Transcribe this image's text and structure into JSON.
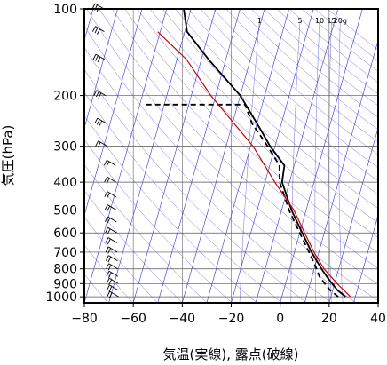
{
  "chart_data": {
    "type": "line",
    "title": "",
    "xlabel": "気温(実線), 露点(破線)",
    "ylabel": "気圧(hPa)",
    "xlim": [
      -80,
      40
    ],
    "ylim_hpa": [
      1050,
      100
    ],
    "y_scale": "log",
    "x_ticks": [
      "−80",
      "−60",
      "−40",
      "−20",
      "0",
      "20",
      "40"
    ],
    "x_tick_values": [
      -80,
      -60,
      -40,
      -20,
      0,
      20,
      40
    ],
    "y_ticks": [
      "100",
      "200",
      "300",
      "400",
      "500",
      "600",
      "700",
      "800",
      "900",
      "1000"
    ],
    "y_tick_values": [
      100,
      200,
      300,
      400,
      500,
      600,
      700,
      800,
      900,
      1000
    ],
    "mixing_ratio_labels": [
      "1",
      "5",
      "10",
      "15",
      "20g"
    ],
    "colors": {
      "isotherms": "#0000cc",
      "dry_adiabats": "#3333cc",
      "mixing_lines": "#3333cc",
      "temperature": "#000000",
      "dewpoint": "#000000",
      "parcel": "#cc0000",
      "wind_barbs": "#000000"
    },
    "series": [
      {
        "name": "",
        "style": "solid",
        "points": [
          {
            "p": 1000,
            "t": 26
          },
          {
            "p": 950,
            "t": 22
          },
          {
            "p": 900,
            "t": 19
          },
          {
            "p": 850,
            "t": 16
          },
          {
            "p": 800,
            "t": 13
          },
          {
            "p": 700,
            "t": 7
          },
          {
            "p": 600,
            "t": 1
          },
          {
            "p": 500,
            "t": -6
          },
          {
            "p": 400,
            "t": -13
          },
          {
            "p": 350,
            "t": -14
          },
          {
            "p": 300,
            "t": -22
          },
          {
            "p": 250,
            "t": -30
          },
          {
            "p": 200,
            "t": -40
          },
          {
            "p": 150,
            "t": -57
          },
          {
            "p": 120,
            "t": -69
          },
          {
            "p": 100,
            "t": -73
          }
        ]
      },
      {
        "name": "",
        "style": "dashed",
        "points": [
          {
            "p": 1000,
            "t": 23
          },
          {
            "p": 950,
            "t": 19
          },
          {
            "p": 900,
            "t": 16
          },
          {
            "p": 850,
            "t": 13
          },
          {
            "p": 800,
            "t": 11
          },
          {
            "p": 700,
            "t": 6
          },
          {
            "p": 600,
            "t": 0
          },
          {
            "p": 500,
            "t": -7
          },
          {
            "p": 400,
            "t": -14
          },
          {
            "p": 350,
            "t": -16
          },
          {
            "p": 300,
            "t": -23
          },
          {
            "p": 250,
            "t": -32
          },
          {
            "p": 215,
            "t": -37
          },
          {
            "p": 215,
            "t": -78
          }
        ]
      },
      {
        "name": "",
        "style": "solid",
        "points": [
          {
            "p": 1000,
            "t": 28
          },
          {
            "p": 900,
            "t": 21
          },
          {
            "p": 800,
            "t": 14
          },
          {
            "p": 700,
            "t": 8
          },
          {
            "p": 600,
            "t": 2
          },
          {
            "p": 500,
            "t": -5
          },
          {
            "p": 400,
            "t": -16
          },
          {
            "p": 300,
            "t": -29
          },
          {
            "p": 200,
            "t": -52
          },
          {
            "p": 150,
            "t": -66
          },
          {
            "p": 120,
            "t": -81
          }
        ]
      }
    ],
    "mixing_ratios_gkg": [
      1,
      5,
      10,
      15,
      20
    ],
    "wind_barb_pressures": [
      1000,
      950,
      900,
      850,
      800,
      750,
      700,
      650,
      600,
      550,
      500,
      450,
      400,
      350,
      300,
      250,
      200,
      150,
      120,
      100
    ]
  }
}
